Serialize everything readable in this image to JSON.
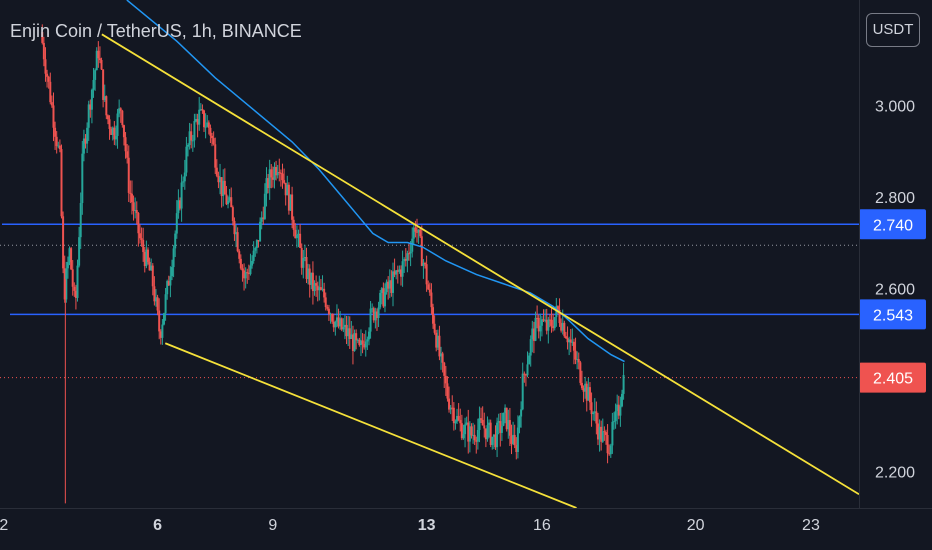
{
  "header": {
    "title": "Enjin Coin / TetherUS, 1h, BINANCE",
    "currency": "USDT"
  },
  "colors": {
    "background": "#131722",
    "up_candle": "#26a69a",
    "down_candle": "#ef5350",
    "ma_line": "#2196f3",
    "trendline": "#f5e13a",
    "support_line": "#2962ff",
    "axis_text": "#d1d4dc"
  },
  "chart_data": {
    "type": "line",
    "symbol": "ENJ/USDT",
    "interval": "1h",
    "exchange": "BINANCE",
    "y_ticks": [
      "3.000",
      "2.800",
      "2.600",
      "2.200"
    ],
    "x_ticks": [
      "2",
      "6",
      "9",
      "13",
      "16",
      "20",
      "23"
    ],
    "x_ticks_bold": [
      "6",
      "13"
    ],
    "ylim": [
      2.12,
      3.23
    ],
    "x_range": [
      1.9,
      24.25
    ],
    "price_labels": [
      {
        "label": "2.740",
        "value": 2.74,
        "kind": "horizontal-line"
      },
      {
        "label": "2.543",
        "value": 2.543,
        "kind": "horizontal-line"
      },
      {
        "label": "2.405",
        "value": 2.405,
        "kind": "last-price"
      }
    ],
    "dotted_level": 2.694,
    "trendlines": [
      {
        "name": "upper-trendline",
        "from": [
          4.55,
          3.155
        ],
        "to": [
          24.25,
          2.15
        ]
      },
      {
        "name": "lower-trendline",
        "from": [
          6.2,
          2.48
        ],
        "to": [
          16.9,
          2.12
        ]
      }
    ],
    "moving_average": [
      [
        5.2,
        3.23
      ],
      [
        6.5,
        3.14
      ],
      [
        7.5,
        3.06
      ],
      [
        8.5,
        2.99
      ],
      [
        9.5,
        2.92
      ],
      [
        10.2,
        2.86
      ],
      [
        10.8,
        2.8
      ],
      [
        11.3,
        2.75
      ],
      [
        11.6,
        2.72
      ],
      [
        12.0,
        2.7
      ],
      [
        12.5,
        2.7
      ],
      [
        12.9,
        2.69
      ],
      [
        13.5,
        2.66
      ],
      [
        14.3,
        2.63
      ],
      [
        15.0,
        2.61
      ],
      [
        15.7,
        2.59
      ],
      [
        16.3,
        2.56
      ],
      [
        16.7,
        2.53
      ],
      [
        17.2,
        2.49
      ],
      [
        17.8,
        2.455
      ],
      [
        18.15,
        2.44
      ]
    ],
    "price_path": [
      [
        3.0,
        3.16
      ],
      [
        3.25,
        3.02
      ],
      [
        3.5,
        2.88
      ],
      [
        3.6,
        2.58
      ],
      [
        3.75,
        2.68
      ],
      [
        3.9,
        2.55
      ],
      [
        4.1,
        2.9
      ],
      [
        4.3,
        3.02
      ],
      [
        4.5,
        3.12
      ],
      [
        4.7,
        2.98
      ],
      [
        4.9,
        2.94
      ],
      [
        5.1,
        3.0
      ],
      [
        5.3,
        2.82
      ],
      [
        5.6,
        2.7
      ],
      [
        5.9,
        2.62
      ],
      [
        6.1,
        2.5
      ],
      [
        6.3,
        2.6
      ],
      [
        6.6,
        2.78
      ],
      [
        6.8,
        2.9
      ],
      [
        7.1,
        2.98
      ],
      [
        7.4,
        2.95
      ],
      [
        7.7,
        2.82
      ],
      [
        8.0,
        2.76
      ],
      [
        8.3,
        2.62
      ],
      [
        8.6,
        2.68
      ],
      [
        8.9,
        2.83
      ],
      [
        9.2,
        2.88
      ],
      [
        9.5,
        2.78
      ],
      [
        9.8,
        2.66
      ],
      [
        10.1,
        2.6
      ],
      [
        10.4,
        2.58
      ],
      [
        10.7,
        2.52
      ],
      [
        11.0,
        2.5
      ],
      [
        11.3,
        2.46
      ],
      [
        11.6,
        2.54
      ],
      [
        11.9,
        2.58
      ],
      [
        12.2,
        2.62
      ],
      [
        12.5,
        2.66
      ],
      [
        12.75,
        2.74
      ],
      [
        13.0,
        2.64
      ],
      [
        13.2,
        2.54
      ],
      [
        13.4,
        2.44
      ],
      [
        13.6,
        2.36
      ],
      [
        13.9,
        2.3
      ],
      [
        14.2,
        2.28
      ],
      [
        14.5,
        2.3
      ],
      [
        14.8,
        2.27
      ],
      [
        15.1,
        2.32
      ],
      [
        15.35,
        2.24
      ],
      [
        15.55,
        2.4
      ],
      [
        15.8,
        2.5
      ],
      [
        16.0,
        2.53
      ],
      [
        16.2,
        2.51
      ],
      [
        16.45,
        2.55
      ],
      [
        16.7,
        2.5
      ],
      [
        16.9,
        2.45
      ],
      [
        17.1,
        2.4
      ],
      [
        17.3,
        2.35
      ],
      [
        17.55,
        2.28
      ],
      [
        17.8,
        2.26
      ],
      [
        18.05,
        2.34
      ],
      [
        18.15,
        2.405
      ]
    ]
  }
}
